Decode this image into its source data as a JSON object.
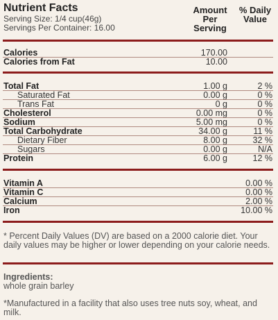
{
  "header": {
    "title": "Nutrient Facts",
    "serving_size": "Serving Size: 1/4 cup(46g)",
    "servings_per_container": "Servings Per Container: 16.00",
    "col_amount": [
      "Amount",
      "Per",
      "Serving"
    ],
    "col_dv": [
      "% Daily",
      "Value"
    ]
  },
  "calories": [
    {
      "name": "Calories",
      "amount": "170.00",
      "dv": ""
    },
    {
      "name": "Calories from Fat",
      "amount": "10.00",
      "dv": ""
    }
  ],
  "nutrients": [
    {
      "name": "Total Fat",
      "amount": "1.00 g",
      "dv": "2 %",
      "bold": true,
      "indent": false
    },
    {
      "name": "Saturated Fat",
      "amount": "0.00 g",
      "dv": "0 %",
      "bold": false,
      "indent": true
    },
    {
      "name": "Trans Fat",
      "amount": "0 g",
      "dv": "0 %",
      "bold": false,
      "indent": true
    },
    {
      "name": "Cholesterol",
      "amount": "0.00 mg",
      "dv": "0 %",
      "bold": true,
      "indent": false
    },
    {
      "name": "Sodium",
      "amount": "5.00 mg",
      "dv": "0 %",
      "bold": true,
      "indent": false
    },
    {
      "name": "Total Carbohydrate",
      "amount": "34.00 g",
      "dv": "11 %",
      "bold": true,
      "indent": false
    },
    {
      "name": "Dietary Fiber",
      "amount": "8.00 g",
      "dv": "32 %",
      "bold": false,
      "indent": true
    },
    {
      "name": "Sugars",
      "amount": "0.00 g",
      "dv": "N/A",
      "bold": false,
      "indent": true
    },
    {
      "name": "Protein",
      "amount": "6.00 g",
      "dv": "12 %",
      "bold": true,
      "indent": false
    }
  ],
  "vitamins": [
    {
      "name": "Vitamin A",
      "dv": "0.00 %"
    },
    {
      "name": "Vitamin C",
      "dv": "0.00 %"
    },
    {
      "name": "Calcium",
      "dv": "2.00 %"
    },
    {
      "name": "Iron",
      "dv": "10.00 %"
    }
  ],
  "footnote": "* Percent Daily Values (DV) are based on a 2000 calorie diet. Your daily values may be higher or lower depending on your calorie needs.",
  "ingredients": {
    "label": "Ingredients:",
    "text": "whole grain barley"
  },
  "allergen_note": "*Manufactured in a facility that also uses tree nuts soy, wheat, and milk.",
  "colors": {
    "rule": "#8c1c1c",
    "background": "#f6f1ea"
  }
}
